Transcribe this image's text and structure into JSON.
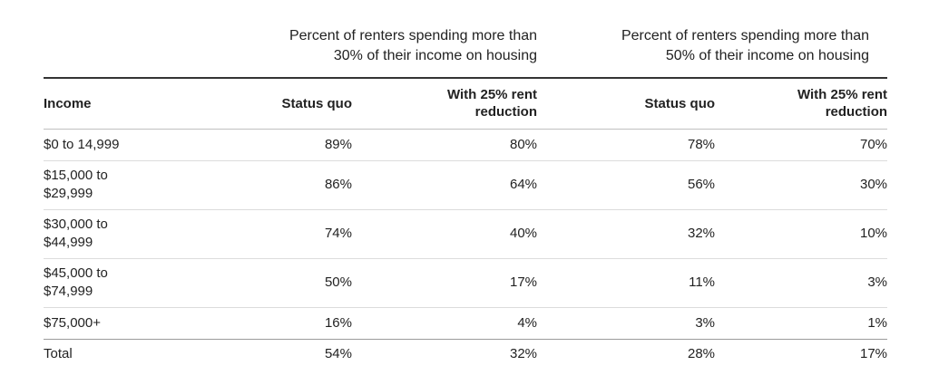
{
  "group_headers": [
    "Percent of renters spending more than\n30% of their income on housing",
    "Percent of renters spending more than\n50% of their income on housing"
  ],
  "columns": [
    "Income",
    "Status quo",
    "With 25% rent\nreduction",
    "Status quo",
    "With 25% rent\nreduction"
  ],
  "rows": [
    {
      "income": "$0 to 14,999",
      "sq30": "89%",
      "rr30": "80%",
      "sq50": "78%",
      "rr50": "70%"
    },
    {
      "income": "$15,000 to\n$29,999",
      "sq30": "86%",
      "rr30": "64%",
      "sq50": "56%",
      "rr50": "30%"
    },
    {
      "income": "$30,000 to\n$44,999",
      "sq30": "74%",
      "rr30": "40%",
      "sq50": "32%",
      "rr50": "10%"
    },
    {
      "income": "$45,000 to\n$74,999",
      "sq30": "50%",
      "rr30": "17%",
      "sq50": "11%",
      "rr50": "3%"
    },
    {
      "income": "$75,000+",
      "sq30": "16%",
      "rr30": "4%",
      "sq50": "3%",
      "rr50": "1%"
    },
    {
      "income": "Total",
      "sq30": "54%",
      "rr30": "32%",
      "sq50": "28%",
      "rr50": "17%"
    }
  ]
}
